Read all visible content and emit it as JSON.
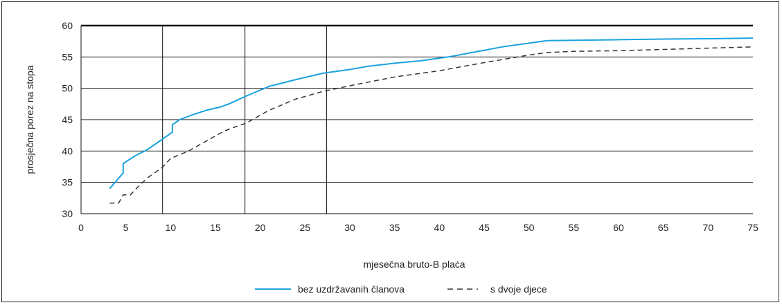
{
  "chart_data": {
    "type": "line",
    "title": "",
    "xlabel": "mjesečna bruto-B plaća",
    "ylabel": "prosječna porez na stopa",
    "xlim": [
      0,
      75
    ],
    "ylim": [
      30,
      60
    ],
    "xticks": [
      0,
      5,
      10,
      15,
      20,
      25,
      30,
      35,
      40,
      45,
      50,
      55,
      60,
      65,
      70,
      75
    ],
    "yticks": [
      30,
      35,
      40,
      45,
      50,
      55,
      60
    ],
    "grid": "horizontal",
    "vertical_markers": [
      9.1,
      18.3,
      27.4
    ],
    "legend_position": "bottom-center",
    "series": [
      {
        "name": "bez uzdržavanih članova",
        "color": "#1aa3e0",
        "style": "solid",
        "x": [
          3.2,
          4.7,
          4.7,
          6,
          7.5,
          9,
          10.2,
          10.2,
          11,
          12.5,
          14,
          15.5,
          16.5,
          18.5,
          21,
          24,
          27,
          30,
          32,
          35,
          38,
          41,
          44,
          47,
          50,
          52,
          55,
          60,
          65,
          70,
          75
        ],
        "y": [
          34,
          36.5,
          38,
          39.2,
          40.3,
          41.8,
          43,
          44.2,
          45,
          45.8,
          46.5,
          47,
          47.5,
          48.8,
          50.3,
          51.4,
          52.4,
          53,
          53.5,
          54,
          54.4,
          55,
          55.8,
          56.6,
          57.2,
          57.6,
          57.65,
          57.75,
          57.85,
          57.9,
          58
        ]
      },
      {
        "name": "s dvoje djece",
        "color": "#333333",
        "style": "dashed",
        "x": [
          3.2,
          4.2,
          4.7,
          5.5,
          6.5,
          7.5,
          9,
          10,
          12,
          14,
          16,
          18.5,
          21,
          24,
          27,
          30,
          35,
          40,
          45,
          50,
          52,
          55,
          60,
          65,
          70,
          75
        ],
        "y": [
          31.7,
          31.7,
          33,
          33,
          34.5,
          35.8,
          37.3,
          38.8,
          40,
          41.6,
          43.2,
          44.5,
          46.5,
          48.3,
          49.5,
          50.4,
          51.8,
          52.8,
          54.1,
          55.3,
          55.7,
          55.9,
          56,
          56.2,
          56.4,
          56.6
        ]
      }
    ]
  }
}
